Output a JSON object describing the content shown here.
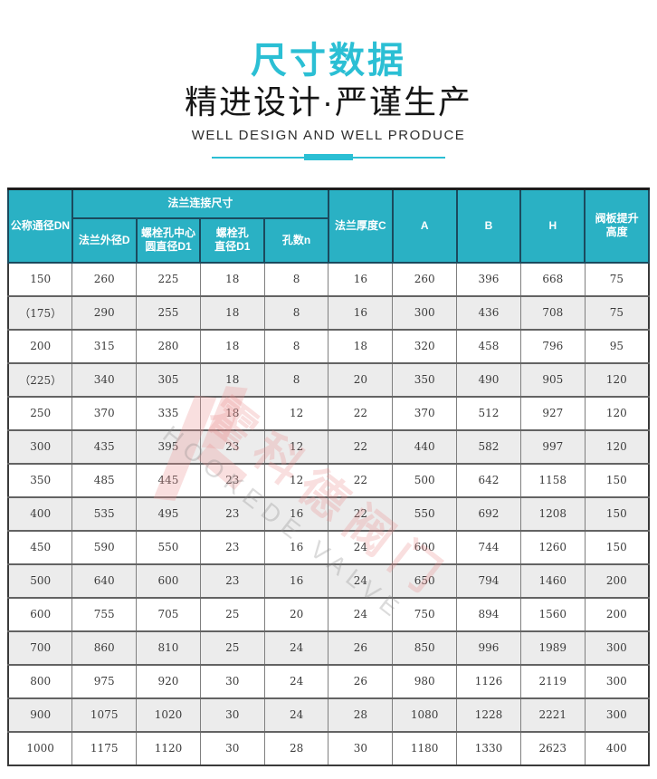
{
  "header": {
    "title": "尺寸数据",
    "subtitle": "精进设计·严谨生产",
    "tagline": "WELL DESIGN AND WELL PRODUCE"
  },
  "colors": {
    "accent": "#2bbfd4",
    "table_header_bg": "#2ab1c4",
    "table_header_border": "#1b4a5e",
    "alt_row_bg": "#ececec",
    "watermark_pink": "#e88b8b"
  },
  "watermark": {
    "cn": "霍科德阀门",
    "en": "HOOKEDE VALVE"
  },
  "table": {
    "group_header": "法兰连接尺寸",
    "columns": [
      "公称通径DN",
      "法兰外径D",
      "螺栓孔中心\n圆直径D1",
      "螺栓孔\n直径D1",
      "孔数n",
      "法兰厚度C",
      "A",
      "B",
      "H",
      "阀板提升\n高度"
    ],
    "rows": [
      [
        "150",
        "260",
        "225",
        "18",
        "8",
        "16",
        "260",
        "396",
        "668",
        "75"
      ],
      [
        "（175）",
        "290",
        "255",
        "18",
        "8",
        "16",
        "300",
        "436",
        "708",
        "75"
      ],
      [
        "200",
        "315",
        "280",
        "18",
        "8",
        "18",
        "320",
        "458",
        "796",
        "95"
      ],
      [
        "（225）",
        "340",
        "305",
        "18",
        "8",
        "20",
        "350",
        "490",
        "905",
        "120"
      ],
      [
        "250",
        "370",
        "335",
        "18",
        "12",
        "22",
        "370",
        "512",
        "927",
        "120"
      ],
      [
        "300",
        "435",
        "395",
        "23",
        "12",
        "22",
        "440",
        "582",
        "997",
        "120"
      ],
      [
        "350",
        "485",
        "445",
        "23",
        "12",
        "22",
        "500",
        "642",
        "1158",
        "150"
      ],
      [
        "400",
        "535",
        "495",
        "23",
        "16",
        "22",
        "550",
        "692",
        "1208",
        "150"
      ],
      [
        "450",
        "590",
        "550",
        "23",
        "16",
        "24",
        "600",
        "744",
        "1260",
        "150"
      ],
      [
        "500",
        "640",
        "600",
        "23",
        "16",
        "24",
        "650",
        "794",
        "1460",
        "200"
      ],
      [
        "600",
        "755",
        "705",
        "25",
        "20",
        "24",
        "750",
        "894",
        "1560",
        "200"
      ],
      [
        "700",
        "860",
        "810",
        "25",
        "24",
        "26",
        "850",
        "996",
        "1989",
        "300"
      ],
      [
        "800",
        "975",
        "920",
        "30",
        "24",
        "26",
        "980",
        "1126",
        "2119",
        "300"
      ],
      [
        "900",
        "1075",
        "1020",
        "30",
        "24",
        "28",
        "1080",
        "1228",
        "2221",
        "300"
      ],
      [
        "1000",
        "1175",
        "1120",
        "30",
        "28",
        "30",
        "1180",
        "1330",
        "2623",
        "400"
      ]
    ]
  }
}
